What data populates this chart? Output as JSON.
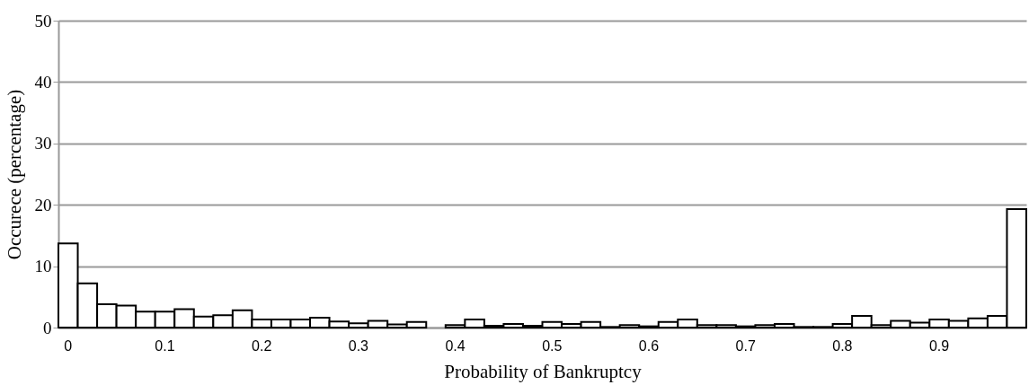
{
  "chart_data": {
    "type": "bar",
    "xlabel": "Probability of Bankruptcy",
    "ylabel": "Occurece (percentage)",
    "categories": [
      "0",
      null,
      null,
      null,
      null,
      "0.1",
      null,
      null,
      null,
      null,
      "0.2",
      null,
      null,
      null,
      null,
      "0.3",
      null,
      null,
      null,
      null,
      "0.4",
      null,
      null,
      null,
      null,
      "0.5",
      null,
      null,
      null,
      null,
      "0.6",
      null,
      null,
      null,
      null,
      "0.7",
      null,
      null,
      null,
      null,
      "0.8",
      null,
      null,
      null,
      null,
      "0.9",
      null,
      null,
      null,
      null
    ],
    "values": [
      13.7,
      7.2,
      3.8,
      3.6,
      2.6,
      2.6,
      3.0,
      1.8,
      2.0,
      2.8,
      1.3,
      1.3,
      1.3,
      1.6,
      1.0,
      0.7,
      1.1,
      0.5,
      0.9,
      null,
      0.4,
      1.3,
      0.3,
      0.6,
      0.3,
      0.9,
      0.6,
      0.9,
      0.1,
      0.4,
      0.2,
      0.9,
      1.3,
      0.4,
      0.4,
      0.2,
      0.4,
      0.6,
      0.1,
      0.1,
      0.6,
      1.9,
      0.4,
      1.1,
      0.8,
      1.3,
      1.1,
      1.5,
      1.9,
      19.3
    ],
    "color": "#ffffff",
    "ylim": [
      0,
      50
    ],
    "yticks": [
      0,
      10,
      20,
      30,
      40,
      50
    ],
    "grid": "y"
  }
}
